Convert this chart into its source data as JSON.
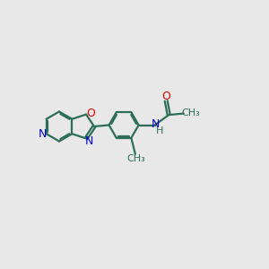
{
  "background_color": "#e8e8e8",
  "bond_color": "#2d6e5a",
  "N_color": "#0000cc",
  "O_color": "#dd0000",
  "H_color": "#2d6e5a",
  "line_width": 1.6,
  "figsize": [
    3.0,
    3.0
  ],
  "dpi": 100,
  "xlim": [
    0,
    10
  ],
  "ylim": [
    0,
    10
  ]
}
